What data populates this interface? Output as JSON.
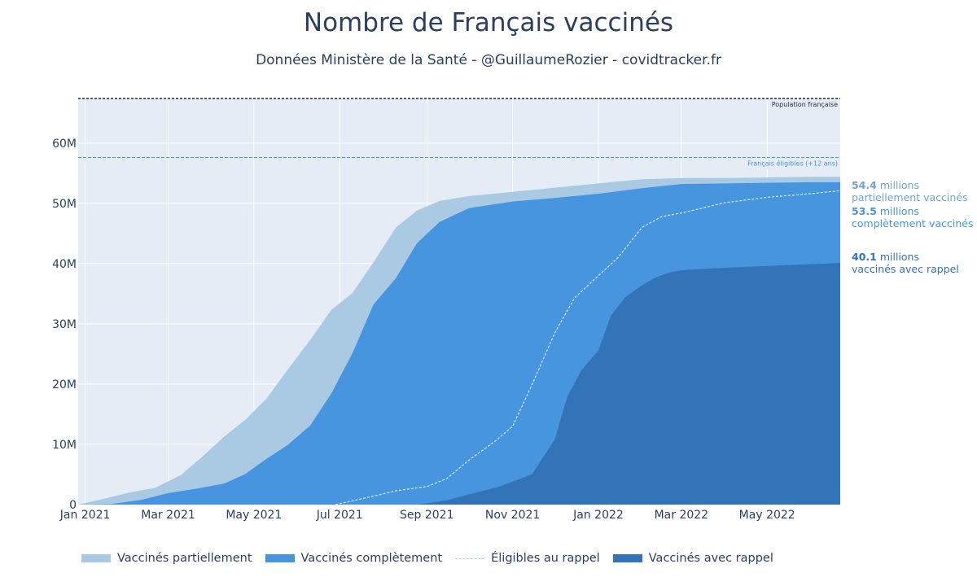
{
  "title": "Nombre de Français vaccinés",
  "subtitle": "Données Ministère de la Santé - @GuillaumeRozier - covidtracker.fr",
  "colors": {
    "partial": "#aac9e3",
    "complete": "#4795de",
    "booster": "#3373b8",
    "eligible_booster": "#d6ebfb",
    "plot_bg": "#e5ecf6",
    "text": "#2a3f5f"
  },
  "reference_lines": [
    {
      "label": "Population française",
      "value": 67.4,
      "color": "#1a2a45"
    },
    {
      "label": "Français éligibles (+12 ans)",
      "value": 57.6,
      "color": "#4795de"
    }
  ],
  "annotations": [
    {
      "value": "54.4",
      "unit": "millions",
      "text": "partiellement vaccinés",
      "color": "#6fa3d4"
    },
    {
      "value": "53.5",
      "unit": "millions",
      "text": "complètement vaccinés",
      "color": "#4795de"
    },
    {
      "value": "40.1",
      "unit": "millions",
      "text": "vaccinés avec rappel",
      "color": "#3373b8"
    }
  ],
  "chart_data": {
    "type": "area",
    "title": "Nombre de Français vaccinés",
    "subtitle": "Données Ministère de la Santé - @GuillaumeRozier - covidtracker.fr",
    "xlabel": "",
    "ylabel": "",
    "xlim": [
      "2020-12-27",
      "2022-06-22"
    ],
    "ylim": [
      0,
      67.4
    ],
    "x_ticks": [
      {
        "date": "2021-01-01",
        "label": "Jan 2021"
      },
      {
        "date": "2021-03-01",
        "label": "Mar 2021"
      },
      {
        "date": "2021-05-01",
        "label": "May 2021"
      },
      {
        "date": "2021-07-01",
        "label": "Jul 2021"
      },
      {
        "date": "2021-09-01",
        "label": "Sep 2021"
      },
      {
        "date": "2021-11-01",
        "label": "Nov 2021"
      },
      {
        "date": "2022-01-01",
        "label": "Jan 2022"
      },
      {
        "date": "2022-03-01",
        "label": "Mar 2022"
      },
      {
        "date": "2022-05-01",
        "label": "May 2022"
      }
    ],
    "y_ticks": [
      {
        "value": 0,
        "label": "0"
      },
      {
        "value": 10,
        "label": "10M"
      },
      {
        "value": 20,
        "label": "20M"
      },
      {
        "value": 30,
        "label": "30M"
      },
      {
        "value": 40,
        "label": "40M"
      },
      {
        "value": 50,
        "label": "50M"
      },
      {
        "value": 60,
        "label": "60M"
      }
    ],
    "unit": "millions",
    "grid": true,
    "legend_position": "bottom",
    "series": [
      {
        "name": "Vaccinés partiellement",
        "style": "area",
        "color": "#aac9e3",
        "x": [
          "2020-12-27",
          "2021-01-15",
          "2021-02-01",
          "2021-02-20",
          "2021-03-10",
          "2021-03-25",
          "2021-04-10",
          "2021-04-25",
          "2021-05-10",
          "2021-05-25",
          "2021-06-10",
          "2021-06-25",
          "2021-07-10",
          "2021-07-25",
          "2021-08-10",
          "2021-08-25",
          "2021-09-10",
          "2021-10-01",
          "2021-11-01",
          "2021-12-01",
          "2022-01-01",
          "2022-02-01",
          "2022-03-01",
          "2022-04-01",
          "2022-05-01",
          "2022-06-01",
          "2022-06-22"
        ],
        "values": [
          0,
          1.0,
          2.0,
          2.8,
          4.9,
          7.9,
          11.3,
          14.1,
          17.6,
          22.4,
          27.3,
          32.3,
          35.1,
          40.2,
          46.0,
          48.8,
          50.4,
          51.2,
          51.9,
          52.6,
          53.3,
          54.0,
          54.2,
          54.2,
          54.3,
          54.4,
          54.4
        ]
      },
      {
        "name": "Vaccinés complètement",
        "style": "area",
        "color": "#4795de",
        "x": [
          "2020-12-27",
          "2021-01-20",
          "2021-02-10",
          "2021-03-01",
          "2021-03-20",
          "2021-04-10",
          "2021-04-25",
          "2021-05-10",
          "2021-05-25",
          "2021-06-10",
          "2021-06-25",
          "2021-07-10",
          "2021-07-25",
          "2021-08-10",
          "2021-08-25",
          "2021-09-10",
          "2021-10-01",
          "2021-11-01",
          "2021-12-01",
          "2022-01-01",
          "2022-02-01",
          "2022-03-01",
          "2022-04-01",
          "2022-05-01",
          "2022-06-01",
          "2022-06-22"
        ],
        "values": [
          0,
          0.1,
          0.8,
          1.9,
          2.6,
          3.5,
          5.1,
          7.6,
          9.9,
          13.1,
          18.4,
          25.1,
          33.2,
          37.6,
          43.4,
          46.9,
          49.2,
          50.3,
          50.9,
          51.6,
          52.5,
          53.2,
          53.3,
          53.4,
          53.5,
          53.5
        ]
      },
      {
        "name": "Éligibles au rappel",
        "style": "line",
        "color": "#d6ebfb",
        "x": [
          "2021-06-28",
          "2021-07-25",
          "2021-08-10",
          "2021-09-01",
          "2021-09-15",
          "2021-10-01",
          "2021-10-20",
          "2021-11-01",
          "2021-11-15",
          "2021-12-01",
          "2021-12-15",
          "2022-01-01",
          "2022-01-15",
          "2022-02-01",
          "2022-02-15",
          "2022-03-01",
          "2022-04-01",
          "2022-05-01",
          "2022-06-01",
          "2022-06-22"
        ],
        "values": [
          0,
          1.4,
          2.3,
          3.0,
          4.3,
          7.4,
          10.6,
          13.0,
          20.0,
          28.5,
          34.3,
          38.0,
          41.0,
          46.0,
          47.8,
          48.4,
          50.1,
          51.0,
          51.6,
          52.1
        ]
      },
      {
        "name": "Vaccinés avec rappel",
        "style": "area",
        "color": "#3373b8",
        "x": [
          "2021-08-25",
          "2021-09-15",
          "2021-10-01",
          "2021-10-20",
          "2021-11-01",
          "2021-11-15",
          "2021-12-01",
          "2021-12-10",
          "2021-12-20",
          "2022-01-01",
          "2022-01-10",
          "2022-01-20",
          "2022-02-01",
          "2022-02-10",
          "2022-02-20",
          "2022-03-01",
          "2022-04-01",
          "2022-05-01",
          "2022-06-01",
          "2022-06-22"
        ],
        "values": [
          0,
          0.7,
          1.7,
          2.8,
          3.8,
          5.1,
          10.8,
          18.0,
          22.3,
          25.6,
          31.4,
          34.4,
          36.4,
          37.6,
          38.5,
          38.9,
          39.3,
          39.6,
          39.9,
          40.1
        ]
      }
    ]
  }
}
